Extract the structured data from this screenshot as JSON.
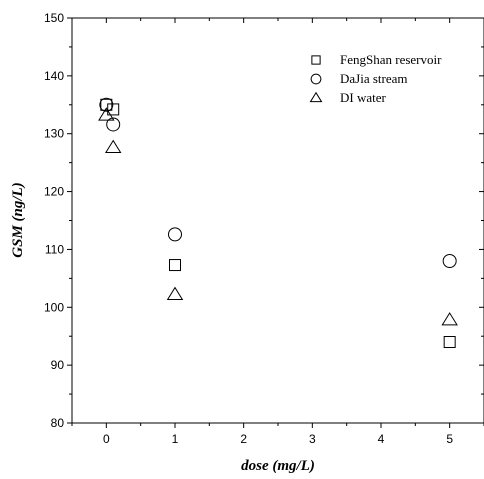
{
  "chart_data": {
    "type": "scatter",
    "xlabel": "dose (mg/L)",
    "ylabel": "GSM (ng/L)",
    "xlim": [
      -0.5,
      5.5
    ],
    "ylim": [
      80,
      150
    ],
    "xticks": [
      "0",
      "1",
      "2",
      "3",
      "4",
      "5"
    ],
    "yticks": [
      "80",
      "90",
      "100",
      "110",
      "120",
      "130",
      "140",
      "150"
    ],
    "grid": false,
    "legend_position": "top-right",
    "series": [
      {
        "name": "FengShan reservoir",
        "marker": "square",
        "points": [
          {
            "x": 0,
            "y": 135.0
          },
          {
            "x": 0.1,
            "y": 134.2
          },
          {
            "x": 1,
            "y": 107.3
          },
          {
            "x": 5,
            "y": 94.0
          }
        ]
      },
      {
        "name": "DaJia stream",
        "marker": "circle",
        "points": [
          {
            "x": 0,
            "y": 135.0
          },
          {
            "x": 0.1,
            "y": 131.6
          },
          {
            "x": 1,
            "y": 112.6
          },
          {
            "x": 5,
            "y": 108.0
          }
        ]
      },
      {
        "name": "DI water",
        "marker": "triangle",
        "points": [
          {
            "x": 0,
            "y": 133.2
          },
          {
            "x": 0.1,
            "y": 127.6
          },
          {
            "x": 1,
            "y": 102.2
          },
          {
            "x": 5,
            "y": 97.8
          }
        ]
      }
    ]
  }
}
